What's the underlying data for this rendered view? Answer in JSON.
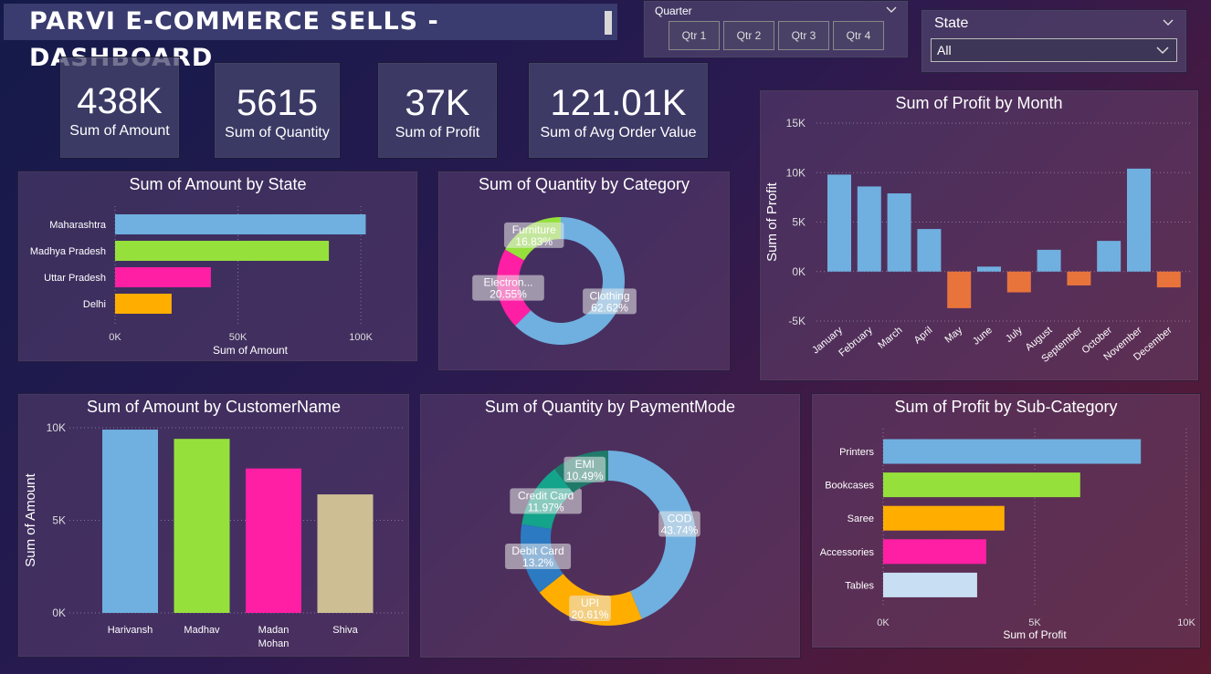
{
  "header": {
    "title": "PARVI E-COMMERCE SELLS - DASHBOARD"
  },
  "filters": {
    "quarter": {
      "label": "Quarter",
      "options": [
        "Qtr 1",
        "Qtr 2",
        "Qtr 3",
        "Qtr 4"
      ]
    },
    "state": {
      "label": "State",
      "selected": "All"
    }
  },
  "kpis": [
    {
      "value": "438K",
      "label": "Sum of Amount"
    },
    {
      "value": "5615",
      "label": "Sum of Quantity"
    },
    {
      "value": "37K",
      "label": "Sum of Profit"
    },
    {
      "value": "121.01K",
      "label": "Sum of Avg Order Value"
    }
  ],
  "colors": {
    "blue": "#6fb0e0",
    "green": "#96e03c",
    "pink": "#ff1fa4",
    "orange": "#ffae00",
    "tan": "#cdbf93",
    "negative": "#e8743c",
    "teal": "#14a38b",
    "darkblue": "#2b7ac2",
    "lightblue": "#c8def2"
  },
  "chart_data": [
    {
      "id": "amount_by_state",
      "type": "bar",
      "orientation": "horizontal",
      "title": "Sum of Amount by State",
      "xlabel": "Sum of Amount",
      "ylabel": "",
      "categories": [
        "Maharashtra",
        "Madhya Pradesh",
        "Uttar Pradesh",
        "Delhi"
      ],
      "values": [
        102000,
        87000,
        39000,
        23000
      ],
      "xlim": [
        0,
        110000
      ],
      "ticks": [
        0,
        50000,
        100000
      ],
      "tick_labels": [
        "0K",
        "50K",
        "100K"
      ],
      "bar_colors": [
        "#6fb0e0",
        "#96e03c",
        "#ff1fa4",
        "#ffae00"
      ]
    },
    {
      "id": "quantity_by_category",
      "type": "pie",
      "donut": true,
      "title": "Sum of Quantity by Category",
      "slices": [
        {
          "label": "Clothing",
          "percent": "62.62%",
          "value": 62.62,
          "color": "#6fb0e0"
        },
        {
          "label": "Electron...",
          "percent": "20.55%",
          "value": 20.55,
          "color": "#ff1fa4"
        },
        {
          "label": "Furniture",
          "percent": "16.83%",
          "value": 16.83,
          "color": "#96e03c"
        }
      ]
    },
    {
      "id": "profit_by_month",
      "type": "bar",
      "title": "Sum of Profit by Month",
      "xlabel": "",
      "ylabel": "Sum of Profit",
      "categories": [
        "January",
        "February",
        "March",
        "April",
        "May",
        "June",
        "July",
        "August",
        "September",
        "October",
        "November",
        "December"
      ],
      "values": [
        9800,
        8600,
        7900,
        4300,
        -3700,
        500,
        -2100,
        2200,
        -1400,
        3100,
        10400,
        -1600
      ],
      "ylim": [
        -5000,
        15000
      ],
      "ticks": [
        -5000,
        0,
        5000,
        10000,
        15000
      ],
      "tick_labels": [
        "-5K",
        "0K",
        "5K",
        "10K",
        "15K"
      ],
      "positive_color": "#6fb0e0",
      "negative_color": "#e8743c"
    },
    {
      "id": "amount_by_customer",
      "type": "bar",
      "title": "Sum of Amount by CustomerName",
      "xlabel": "",
      "ylabel": "Sum of Amount",
      "categories": [
        "Harivansh",
        "Madhav",
        "Madan Mohan",
        "Shiva"
      ],
      "values": [
        9900,
        9400,
        7800,
        6400
      ],
      "ylim": [
        0,
        10000
      ],
      "ticks": [
        0,
        5000,
        10000
      ],
      "tick_labels": [
        "0K",
        "5K",
        "10K"
      ],
      "bar_colors": [
        "#6fb0e0",
        "#96e03c",
        "#ff1fa4",
        "#cdbf93"
      ]
    },
    {
      "id": "quantity_by_paymentmode",
      "type": "pie",
      "donut": true,
      "title": "Sum of Quantity by PaymentMode",
      "slices": [
        {
          "label": "COD",
          "percent": "43.74%",
          "value": 43.74,
          "color": "#6fb0e0"
        },
        {
          "label": "UPI",
          "percent": "20.61%",
          "value": 20.61,
          "color": "#ffae00"
        },
        {
          "label": "Debit Card",
          "percent": "13.2%",
          "value": 13.2,
          "color": "#2b7ac2"
        },
        {
          "label": "Credit Card",
          "percent": "11.97%",
          "value": 11.97,
          "color": "#14a38b"
        },
        {
          "label": "EMI",
          "percent": "10.49%",
          "value": 10.49,
          "color": "#1f7a6a"
        }
      ]
    },
    {
      "id": "profit_by_subcategory",
      "type": "bar",
      "orientation": "horizontal",
      "title": "Sum of Profit by Sub-Category",
      "xlabel": "Sum of Profit",
      "ylabel": "",
      "categories": [
        "Printers",
        "Bookcases",
        "Saree",
        "Accessories",
        "Tables"
      ],
      "values": [
        8500,
        6500,
        4000,
        3400,
        3100
      ],
      "xlim": [
        0,
        10000
      ],
      "ticks": [
        0,
        5000,
        10000
      ],
      "tick_labels": [
        "0K",
        "5K",
        "10K"
      ],
      "bar_colors": [
        "#6fb0e0",
        "#96e03c",
        "#ffae00",
        "#ff1fa4",
        "#c8def2"
      ]
    }
  ]
}
